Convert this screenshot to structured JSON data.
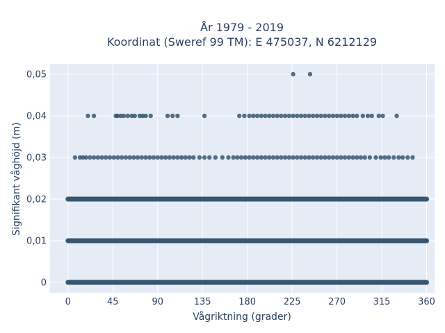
{
  "chart_data": {
    "type": "scatter",
    "title_line1": "År 1979 - 2019",
    "title_line2": "Koordinat (Sweref 99 TM): E 475037, N 6212129",
    "xlabel": "Vågriktning (grader)",
    "ylabel": "Signifikant våghöjd (m)",
    "xlim": [
      -18,
      368
    ],
    "ylim": [
      -0.0025,
      0.0525
    ],
    "x_ticks": [
      0,
      45,
      90,
      135,
      180,
      225,
      270,
      315,
      360
    ],
    "x_tick_labels": [
      "0",
      "45",
      "90",
      "135",
      "180",
      "225",
      "270",
      "315",
      "360"
    ],
    "y_ticks": [
      0,
      0.01,
      0.02,
      0.03,
      0.04,
      0.05
    ],
    "y_tick_labels": [
      "0",
      "0,01",
      "0,02",
      "0,03",
      "0,04",
      "0,05"
    ],
    "grid": true,
    "background_color": "#e5ecf6",
    "marker_color": "#2d4d66",
    "bands": [
      {
        "y": 0,
        "x_min": 0,
        "x_max": 360
      },
      {
        "y": 0.01,
        "x_min": 0,
        "x_max": 360
      },
      {
        "y": 0.02,
        "x_min": 0,
        "x_max": 360
      }
    ],
    "points": [
      {
        "x": 226,
        "y": 0.05
      },
      {
        "x": 243,
        "y": 0.05
      },
      {
        "x": 20,
        "y": 0.04
      },
      {
        "x": 26,
        "y": 0.04
      },
      {
        "x": 48,
        "y": 0.04
      },
      {
        "x": 50,
        "y": 0.04
      },
      {
        "x": 53,
        "y": 0.04
      },
      {
        "x": 56,
        "y": 0.04
      },
      {
        "x": 60,
        "y": 0.04
      },
      {
        "x": 64,
        "y": 0.04
      },
      {
        "x": 67,
        "y": 0.04
      },
      {
        "x": 72,
        "y": 0.04
      },
      {
        "x": 75,
        "y": 0.04
      },
      {
        "x": 78,
        "y": 0.04
      },
      {
        "x": 83,
        "y": 0.04
      },
      {
        "x": 100,
        "y": 0.04
      },
      {
        "x": 105,
        "y": 0.04
      },
      {
        "x": 110,
        "y": 0.04
      },
      {
        "x": 137,
        "y": 0.04
      },
      {
        "x": 172,
        "y": 0.04
      },
      {
        "x": 177,
        "y": 0.04
      },
      {
        "x": 182,
        "y": 0.04
      },
      {
        "x": 186,
        "y": 0.04
      },
      {
        "x": 190,
        "y": 0.04
      },
      {
        "x": 194,
        "y": 0.04
      },
      {
        "x": 198,
        "y": 0.04
      },
      {
        "x": 202,
        "y": 0.04
      },
      {
        "x": 206,
        "y": 0.04
      },
      {
        "x": 210,
        "y": 0.04
      },
      {
        "x": 214,
        "y": 0.04
      },
      {
        "x": 218,
        "y": 0.04
      },
      {
        "x": 222,
        "y": 0.04
      },
      {
        "x": 226,
        "y": 0.04
      },
      {
        "x": 230,
        "y": 0.04
      },
      {
        "x": 234,
        "y": 0.04
      },
      {
        "x": 238,
        "y": 0.04
      },
      {
        "x": 242,
        "y": 0.04
      },
      {
        "x": 246,
        "y": 0.04
      },
      {
        "x": 250,
        "y": 0.04
      },
      {
        "x": 254,
        "y": 0.04
      },
      {
        "x": 258,
        "y": 0.04
      },
      {
        "x": 262,
        "y": 0.04
      },
      {
        "x": 266,
        "y": 0.04
      },
      {
        "x": 270,
        "y": 0.04
      },
      {
        "x": 274,
        "y": 0.04
      },
      {
        "x": 278,
        "y": 0.04
      },
      {
        "x": 282,
        "y": 0.04
      },
      {
        "x": 286,
        "y": 0.04
      },
      {
        "x": 290,
        "y": 0.04
      },
      {
        "x": 296,
        "y": 0.04
      },
      {
        "x": 301,
        "y": 0.04
      },
      {
        "x": 305,
        "y": 0.04
      },
      {
        "x": 312,
        "y": 0.04
      },
      {
        "x": 316,
        "y": 0.04
      },
      {
        "x": 330,
        "y": 0.04
      },
      {
        "x": 7,
        "y": 0.03
      },
      {
        "x": 12,
        "y": 0.03
      },
      {
        "x": 15,
        "y": 0.03
      },
      {
        "x": 18,
        "y": 0.03
      },
      {
        "x": 22,
        "y": 0.03
      },
      {
        "x": 26,
        "y": 0.03
      },
      {
        "x": 30,
        "y": 0.03
      },
      {
        "x": 34,
        "y": 0.03
      },
      {
        "x": 38,
        "y": 0.03
      },
      {
        "x": 42,
        "y": 0.03
      },
      {
        "x": 46,
        "y": 0.03
      },
      {
        "x": 50,
        "y": 0.03
      },
      {
        "x": 54,
        "y": 0.03
      },
      {
        "x": 58,
        "y": 0.03
      },
      {
        "x": 62,
        "y": 0.03
      },
      {
        "x": 66,
        "y": 0.03
      },
      {
        "x": 70,
        "y": 0.03
      },
      {
        "x": 74,
        "y": 0.03
      },
      {
        "x": 78,
        "y": 0.03
      },
      {
        "x": 82,
        "y": 0.03
      },
      {
        "x": 86,
        "y": 0.03
      },
      {
        "x": 90,
        "y": 0.03
      },
      {
        "x": 94,
        "y": 0.03
      },
      {
        "x": 98,
        "y": 0.03
      },
      {
        "x": 102,
        "y": 0.03
      },
      {
        "x": 106,
        "y": 0.03
      },
      {
        "x": 110,
        "y": 0.03
      },
      {
        "x": 114,
        "y": 0.03
      },
      {
        "x": 118,
        "y": 0.03
      },
      {
        "x": 122,
        "y": 0.03
      },
      {
        "x": 126,
        "y": 0.03
      },
      {
        "x": 132,
        "y": 0.03
      },
      {
        "x": 137,
        "y": 0.03
      },
      {
        "x": 142,
        "y": 0.03
      },
      {
        "x": 148,
        "y": 0.03
      },
      {
        "x": 155,
        "y": 0.03
      },
      {
        "x": 161,
        "y": 0.03
      },
      {
        "x": 166,
        "y": 0.03
      },
      {
        "x": 170,
        "y": 0.03
      },
      {
        "x": 174,
        "y": 0.03
      },
      {
        "x": 178,
        "y": 0.03
      },
      {
        "x": 182,
        "y": 0.03
      },
      {
        "x": 186,
        "y": 0.03
      },
      {
        "x": 190,
        "y": 0.03
      },
      {
        "x": 194,
        "y": 0.03
      },
      {
        "x": 198,
        "y": 0.03
      },
      {
        "x": 202,
        "y": 0.03
      },
      {
        "x": 206,
        "y": 0.03
      },
      {
        "x": 210,
        "y": 0.03
      },
      {
        "x": 214,
        "y": 0.03
      },
      {
        "x": 218,
        "y": 0.03
      },
      {
        "x": 222,
        "y": 0.03
      },
      {
        "x": 226,
        "y": 0.03
      },
      {
        "x": 230,
        "y": 0.03
      },
      {
        "x": 234,
        "y": 0.03
      },
      {
        "x": 238,
        "y": 0.03
      },
      {
        "x": 242,
        "y": 0.03
      },
      {
        "x": 246,
        "y": 0.03
      },
      {
        "x": 250,
        "y": 0.03
      },
      {
        "x": 254,
        "y": 0.03
      },
      {
        "x": 258,
        "y": 0.03
      },
      {
        "x": 262,
        "y": 0.03
      },
      {
        "x": 266,
        "y": 0.03
      },
      {
        "x": 270,
        "y": 0.03
      },
      {
        "x": 274,
        "y": 0.03
      },
      {
        "x": 278,
        "y": 0.03
      },
      {
        "x": 282,
        "y": 0.03
      },
      {
        "x": 286,
        "y": 0.03
      },
      {
        "x": 290,
        "y": 0.03
      },
      {
        "x": 294,
        "y": 0.03
      },
      {
        "x": 298,
        "y": 0.03
      },
      {
        "x": 303,
        "y": 0.03
      },
      {
        "x": 309,
        "y": 0.03
      },
      {
        "x": 314,
        "y": 0.03
      },
      {
        "x": 318,
        "y": 0.03
      },
      {
        "x": 322,
        "y": 0.03
      },
      {
        "x": 327,
        "y": 0.03
      },
      {
        "x": 332,
        "y": 0.03
      },
      {
        "x": 336,
        "y": 0.03
      },
      {
        "x": 341,
        "y": 0.03
      },
      {
        "x": 346,
        "y": 0.03
      }
    ]
  }
}
